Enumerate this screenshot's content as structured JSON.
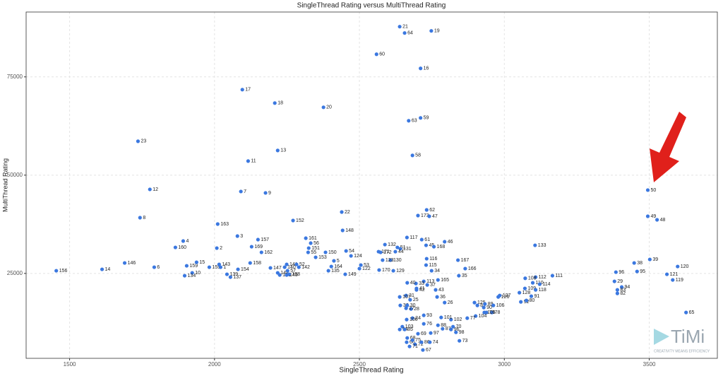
{
  "chart_data": {
    "type": "scatter",
    "title": "SingleThread Rating versus MultiThread Rating",
    "x_label": "SingleThread Rating",
    "y_label": "MultiThread Rating",
    "xlim": [
      1350,
      3735
    ],
    "ylim": [
      3400,
      91500
    ],
    "xticks": [
      1500,
      2000,
      2500,
      3000,
      3500
    ],
    "yticks": [
      25000,
      50000,
      75000
    ],
    "grid": true,
    "color": "#3b78e0",
    "labels": [
      "156",
      "14",
      "146",
      "6",
      "23",
      "12",
      "8",
      "4",
      "160",
      "159",
      "10",
      "134",
      "15",
      "155",
      "143",
      "1",
      "2",
      "163",
      "3",
      "17",
      "18",
      "11",
      "13",
      "7",
      "9",
      "139",
      "137",
      "154",
      "157",
      "169",
      "158",
      "162",
      "147",
      "144",
      "140",
      "136",
      "145",
      "141",
      "57",
      "138",
      "52",
      "142",
      "152",
      "20",
      "22",
      "161",
      "56",
      "151",
      "55",
      "153",
      "150",
      "148",
      "164",
      "5",
      "135",
      "54",
      "149",
      "124",
      "122",
      "53",
      "171",
      "172",
      "130",
      "123",
      "132",
      "51",
      "131",
      "44",
      "129",
      "170",
      "117",
      "61",
      "45",
      "168",
      "46",
      "116",
      "115",
      "34",
      "165",
      "113",
      "33",
      "40",
      "37",
      "41",
      "42",
      "43",
      "36",
      "25",
      "31",
      "107",
      "32",
      "30",
      "28",
      "27",
      "26",
      "167",
      "166",
      "35",
      "125",
      "81",
      "89",
      "90",
      "106",
      "126",
      "127",
      "79",
      "78",
      "105",
      "104",
      "77",
      "102",
      "101",
      "93",
      "24",
      "100",
      "76",
      "103",
      "84",
      "85",
      "69",
      "68",
      "66",
      "75",
      "72",
      "71",
      "86",
      "67",
      "74",
      "97",
      "88",
      "87",
      "96",
      "98",
      "70",
      "73",
      "21",
      "64",
      "19",
      "60",
      "16",
      "63",
      "59",
      "58",
      "62",
      "173",
      "47",
      "133",
      "128",
      "92",
      "80",
      "91",
      "109",
      "110",
      "118",
      "114",
      "112",
      "108",
      "111",
      "96",
      "38",
      "39",
      "95",
      "29",
      "94",
      "83",
      "82",
      "121",
      "120",
      "119",
      "65",
      "49",
      "48",
      "50"
    ],
    "x": [
      1454,
      1612,
      1690,
      1792,
      1736,
      1777,
      1743,
      1892,
      1865,
      1904,
      1923,
      1897,
      1938,
      1982,
      2016,
      2021,
      2008,
      2011,
      2079,
      2096,
      2208,
      2116,
      2218,
      2091,
      2176,
      2043,
      2055,
      2081,
      2150,
      2128,
      2123,
      2162,
      2193,
      2218,
      2242,
      2225,
      2249,
      2249,
      2252,
      2257,
      2283,
      2291,
      2271,
      2376,
      2439,
      2315,
      2332,
      2325,
      2323,
      2349,
      2383,
      2442,
      2403,
      2412,
      2393,
      2454,
      2451,
      2471,
      2500,
      2505,
      2566,
      2573,
      2607,
      2580,
      2588,
      2631,
      2641,
      2624,
      2617,
      2568,
      2664,
      2715,
      2730,
      2757,
      2794,
      2732,
      2730,
      2749,
      2771,
      2722,
      2695,
      2665,
      2734,
      2697,
      2697,
      2763,
      2768,
      2675,
      2661,
      2639,
      2641,
      2665,
      2678,
      2661,
      2794,
      2840,
      2865,
      2843,
      2897,
      2907,
      2933,
      2929,
      2962,
      2979,
      2984,
      2938,
      2957,
      2931,
      2901,
      2872,
      2816,
      2782,
      2722,
      2683,
      2663,
      2722,
      2648,
      2639,
      2656,
      2702,
      2665,
      2663,
      2683,
      2692,
      2673,
      2714,
      2719,
      2743,
      2746,
      2771,
      2787,
      2816,
      2833,
      2823,
      2845,
      2639,
      2656,
      2748,
      2559,
      2711,
      2670,
      2711,
      2683,
      2732,
      2702,
      2741,
      3106,
      3052,
      3057,
      3076,
      3093,
      3071,
      3098,
      3108,
      3122,
      3108,
      3072,
      3166,
      3385,
      3448,
      3502,
      3458,
      3380,
      3405,
      3390,
      3390,
      3561,
      3598,
      3581,
      3627,
      3495,
      3527,
      3495
    ],
    "values": [
      25680,
      26040,
      27660,
      26580,
      58620,
      46380,
      39180,
      33240,
      31620,
      26940,
      25140,
      24420,
      27840,
      26580,
      27300,
      26580,
      31440,
      37560,
      34500,
      71760,
      68340,
      53580,
      56280,
      45840,
      45480,
      24780,
      24060,
      26040,
      33600,
      31800,
      27660,
      30360,
      26400,
      25140,
      26580,
      24600,
      24600,
      27300,
      25680,
      24780,
      27300,
      26580,
      38460,
      67260,
      40620,
      33960,
      32700,
      31440,
      30360,
      29100,
      30360,
      35940,
      26760,
      28200,
      25680,
      30720,
      24780,
      29460,
      26220,
      27120,
      30540,
      30360,
      28380,
      28380,
      32340,
      31620,
      31260,
      30540,
      25680,
      25860,
      34140,
      33600,
      32160,
      31800,
      33060,
      28740,
      27120,
      25680,
      23340,
      22980,
      22440,
      22620,
      22080,
      21180,
      20820,
      20820,
      19020,
      18300,
      19380,
      19020,
      16860,
      16860,
      15960,
      16140,
      17580,
      28380,
      26220,
      24420,
      17580,
      16860,
      17220,
      16320,
      16860,
      19020,
      19380,
      15060,
      15060,
      15060,
      14160,
      13620,
      13260,
      13800,
      14340,
      13620,
      13260,
      12180,
      11460,
      10740,
      10740,
      9660,
      8580,
      7500,
      8040,
      6960,
      6420,
      7500,
      5520,
      7500,
      9840,
      11820,
      10920,
      10740,
      10020,
      11460,
      7860,
      87780,
      86160,
      86700,
      80760,
      77160,
      63840,
      64560,
      55020,
      41160,
      39720,
      39540,
      32160,
      20100,
      17760,
      18120,
      19200,
      21180,
      22620,
      20820,
      22260,
      24060,
      23760,
      24420,
      25320,
      27660,
      28560,
      25500,
      22980,
      21540,
      20820,
      19920,
      24780,
      26760,
      23340,
      15060,
      39540,
      38640,
      46200
    ]
  },
  "logo": {
    "text": "TiMi",
    "tagline": "CREATIVITY MEANS EFFICIENCY"
  }
}
